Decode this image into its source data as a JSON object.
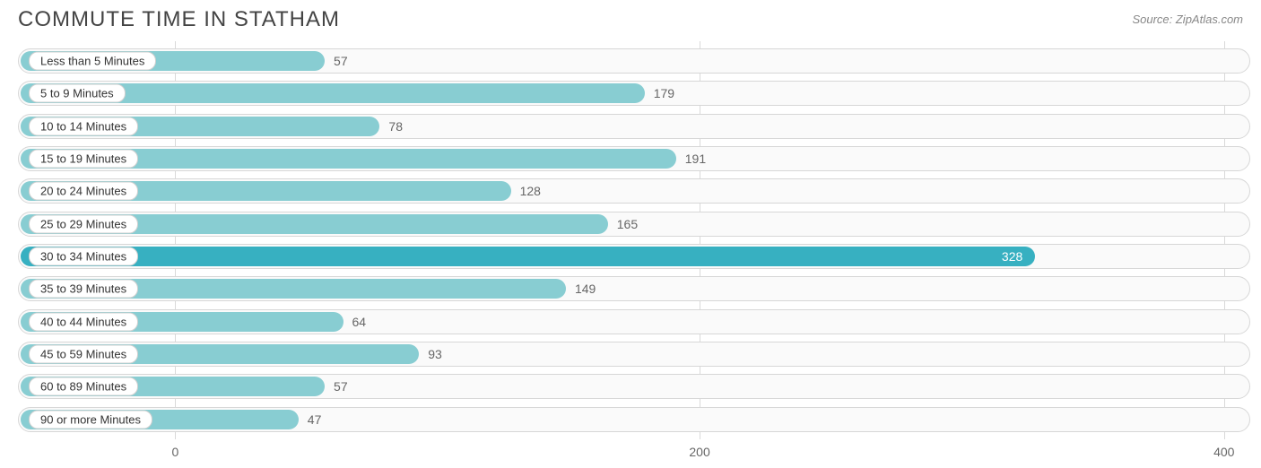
{
  "title": "COMMUTE TIME IN STATHAM",
  "source": "Source: ZipAtlas.com",
  "chart": {
    "type": "bar-horizontal",
    "xmin": -60,
    "xmax": 410,
    "ticks": [
      0,
      200,
      400
    ],
    "track_border": "#d7d7d7",
    "track_bg": "#fafafa",
    "grid_color": "#d9d9d9",
    "value_color_outside": "#666666",
    "value_color_inside": "#ffffff",
    "label_pill_bg": "#ffffff",
    "label_pill_border": "#cfcfcf",
    "rows": [
      {
        "label": "Less than 5 Minutes",
        "value": 57,
        "fill": "#88cdd2",
        "highlight": false
      },
      {
        "label": "5 to 9 Minutes",
        "value": 179,
        "fill": "#88cdd2",
        "highlight": false
      },
      {
        "label": "10 to 14 Minutes",
        "value": 78,
        "fill": "#88cdd2",
        "highlight": false
      },
      {
        "label": "15 to 19 Minutes",
        "value": 191,
        "fill": "#88cdd2",
        "highlight": false
      },
      {
        "label": "20 to 24 Minutes",
        "value": 128,
        "fill": "#88cdd2",
        "highlight": false
      },
      {
        "label": "25 to 29 Minutes",
        "value": 165,
        "fill": "#88cdd2",
        "highlight": false
      },
      {
        "label": "30 to 34 Minutes",
        "value": 328,
        "fill": "#37b0c1",
        "highlight": true
      },
      {
        "label": "35 to 39 Minutes",
        "value": 149,
        "fill": "#88cdd2",
        "highlight": false
      },
      {
        "label": "40 to 44 Minutes",
        "value": 64,
        "fill": "#88cdd2",
        "highlight": false
      },
      {
        "label": "45 to 59 Minutes",
        "value": 93,
        "fill": "#88cdd2",
        "highlight": false
      },
      {
        "label": "60 to 89 Minutes",
        "value": 57,
        "fill": "#88cdd2",
        "highlight": false
      },
      {
        "label": "90 or more Minutes",
        "value": 47,
        "fill": "#88cdd2",
        "highlight": false
      }
    ]
  }
}
